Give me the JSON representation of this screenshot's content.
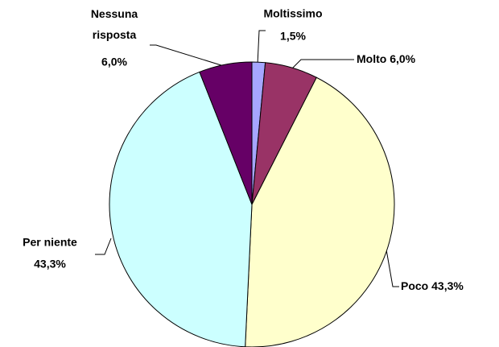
{
  "chart_data": {
    "type": "pie",
    "categories": [
      "Moltissimo",
      "Molto",
      "Poco",
      "Per niente",
      "Nessuna risposta"
    ],
    "values": [
      1.5,
      6.0,
      43.3,
      43.3,
      6.0
    ],
    "value_labels": [
      "1,5%",
      "6,0%",
      "43,3%",
      "43,3%",
      "6,0%"
    ],
    "colors": [
      "#a6a6ff",
      "#993366",
      "#ffffcc",
      "#ccffff",
      "#660066"
    ]
  }
}
